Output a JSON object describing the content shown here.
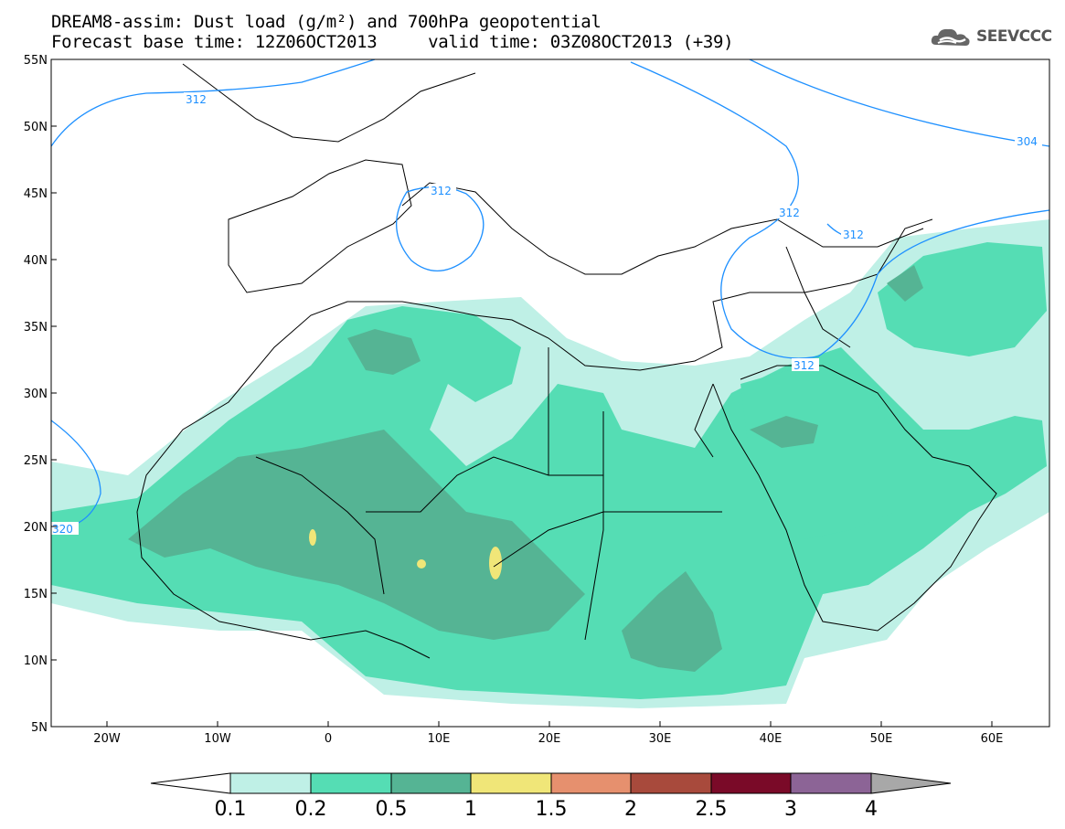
{
  "title_line1": "DREAM8-assim: Dust load (g/m²) and 700hPa geopotential",
  "title_line2": "Forecast base time: 12Z06OCT2013     valid time: 03Z08OCT2013 (+39)",
  "logo_text": "SEEVCCC",
  "lat_labels": [
    "55N",
    "50N",
    "45N",
    "40N",
    "35N",
    "30N",
    "25N",
    "20N",
    "15N",
    "10N",
    "5N"
  ],
  "lon_labels": [
    "20W",
    "10W",
    "0",
    "10E",
    "20E",
    "30E",
    "40E",
    "50E",
    "60E"
  ],
  "contour_labels": [
    "312",
    "312",
    "312",
    "312",
    "312",
    "304",
    "320"
  ],
  "colorbar": {
    "ticks": [
      "0.1",
      "0.2",
      "0.5",
      "1",
      "1.5",
      "2",
      "2.5",
      "3",
      "4"
    ],
    "colors": [
      "#bff0e6",
      "#55ddb4",
      "#55b494",
      "#f0e678",
      "#e6906e",
      "#a84a3c",
      "#7a0a28",
      "#8c6496",
      "#a8a8a8"
    ]
  }
}
